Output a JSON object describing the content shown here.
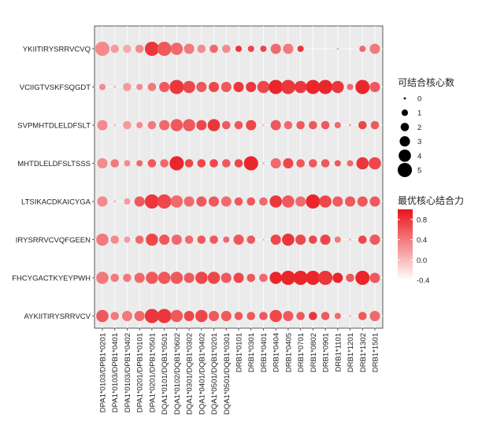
{
  "chart_data": {
    "type": "scatter",
    "peptides": [
      "YKIITIRYSRRVCVQ",
      "VCIIGTVSKFSQGDT",
      "SVPMHTDLELDFSLT",
      "MHTDLELDFSLTSSS",
      "LTSIKACDKAICYGA",
      "IRYSRRVCVQFGEEN",
      "FHCYGACTKYEYPWH",
      "AYKIITIRYSRRVCV"
    ],
    "alleles": [
      "DPA1*0103/DPB1*0201",
      "DPA1*0103/DPB1*0401",
      "DPA1*0103/DPB1*0402",
      "DPA1*0201/DPB1*0101",
      "DPA1*0201/DPB1*0501",
      "DQA1*0101/DQB1*0501",
      "DQA1*0102/DQB1*0602",
      "DQA1*0301/DQB1*0302",
      "DQA1*0401/DQB1*0402",
      "DQA1*0501/DQB1*0201",
      "DQA1*0501/DQB1*0301",
      "DRB1*0101",
      "DRB1*0301",
      "DRB1*0401",
      "DRB1*0404",
      "DRB1*0405",
      "DRB1*0701",
      "DRB1*0802",
      "DRB1*0901",
      "DRB1*1101",
      "DRB1*1201",
      "DRB1*1302",
      "DRB1*1501"
    ],
    "count": [
      [
        5,
        2,
        2,
        2,
        5,
        5,
        4,
        3,
        2,
        2,
        2,
        1,
        1,
        1,
        3,
        3,
        1,
        0,
        0,
        0,
        0,
        1,
        3
      ],
      [
        1,
        0,
        2,
        1,
        2,
        3,
        5,
        4,
        3,
        3,
        3,
        3,
        3,
        4,
        5,
        5,
        4,
        5,
        5,
        4,
        1,
        5,
        3
      ],
      [
        3,
        0,
        2,
        1,
        2,
        3,
        4,
        4,
        3,
        4,
        2,
        2,
        3,
        0,
        3,
        2,
        2,
        2,
        2,
        1,
        0,
        2,
        2
      ],
      [
        3,
        2,
        1,
        1,
        2,
        2,
        5,
        2,
        2,
        2,
        2,
        2,
        5,
        0,
        3,
        3,
        2,
        2,
        2,
        1,
        1,
        4,
        4
      ],
      [
        3,
        0,
        1,
        3,
        5,
        5,
        4,
        3,
        3,
        3,
        3,
        2,
        2,
        2,
        4,
        4,
        3,
        5,
        4,
        3,
        3,
        3,
        3
      ],
      [
        4,
        2,
        1,
        2,
        4,
        3,
        3,
        2,
        2,
        2,
        1,
        3,
        2,
        0,
        3,
        4,
        3,
        2,
        3,
        1,
        0,
        2,
        3
      ],
      [
        4,
        2,
        2,
        3,
        4,
        4,
        4,
        3,
        4,
        4,
        3,
        3,
        2,
        2,
        4,
        5,
        5,
        5,
        5,
        3,
        2,
        5,
        3
      ],
      [
        4,
        2,
        3,
        3,
        5,
        5,
        4,
        3,
        4,
        3,
        3,
        2,
        2,
        2,
        4,
        3,
        2,
        2,
        2,
        1,
        0,
        2,
        3
      ]
    ],
    "affinity": [
      [
        0.3,
        0.2,
        0.1,
        0.3,
        0.8,
        0.6,
        0.5,
        0.4,
        0.3,
        0.5,
        0.3,
        0.8,
        0.7,
        0.7,
        0.5,
        0.4,
        0.8,
        -0.4,
        -0.4,
        0.1,
        -0.4,
        0.5,
        0.4
      ],
      [
        0.3,
        0.1,
        0.2,
        0.3,
        0.4,
        0.6,
        0.8,
        0.7,
        0.6,
        0.7,
        0.6,
        0.8,
        0.8,
        0.7,
        0.9,
        0.8,
        0.8,
        0.9,
        0.9,
        0.8,
        0.5,
        0.9,
        0.6
      ],
      [
        0.3,
        0.1,
        0.2,
        0.3,
        0.4,
        0.5,
        0.6,
        0.6,
        0.7,
        0.8,
        0.6,
        0.6,
        0.7,
        0.0,
        0.6,
        0.5,
        0.6,
        0.6,
        0.6,
        0.5,
        0.2,
        0.7,
        0.6
      ],
      [
        0.3,
        0.4,
        0.3,
        0.5,
        0.6,
        0.5,
        0.9,
        0.7,
        0.7,
        0.7,
        0.6,
        0.7,
        0.9,
        0.1,
        0.5,
        0.7,
        0.6,
        0.6,
        0.6,
        0.6,
        0.5,
        0.8,
        0.7
      ],
      [
        0.3,
        0.1,
        0.2,
        0.6,
        0.8,
        0.7,
        0.5,
        0.5,
        0.6,
        0.6,
        0.5,
        0.6,
        0.6,
        0.5,
        0.8,
        0.6,
        0.5,
        0.9,
        0.7,
        0.6,
        0.6,
        0.6,
        0.6
      ],
      [
        0.4,
        0.3,
        0.2,
        0.5,
        0.7,
        0.6,
        0.5,
        0.5,
        0.6,
        0.6,
        0.5,
        0.6,
        0.6,
        0.0,
        0.7,
        0.8,
        0.7,
        0.7,
        0.7,
        0.4,
        0.1,
        0.7,
        0.6
      ],
      [
        0.4,
        0.4,
        0.4,
        0.5,
        0.6,
        0.6,
        0.6,
        0.6,
        0.7,
        0.7,
        0.6,
        0.7,
        0.6,
        0.5,
        0.9,
        0.9,
        0.9,
        0.9,
        0.8,
        0.9,
        0.6,
        0.9,
        0.6
      ],
      [
        0.6,
        0.4,
        0.4,
        0.5,
        0.8,
        0.8,
        0.6,
        0.7,
        0.7,
        0.6,
        0.6,
        0.6,
        0.6,
        0.6,
        0.7,
        0.6,
        0.6,
        0.8,
        0.6,
        0.5,
        0.1,
        0.6,
        0.5
      ]
    ],
    "size_legend": {
      "title": "可结合核心数",
      "levels": [
        0,
        1,
        2,
        3,
        4,
        5
      ],
      "labels": [
        "0",
        "1",
        "2",
        "3",
        "4",
        "5"
      ]
    },
    "color_legend": {
      "title": "最优核心结合力",
      "range": [
        -0.4,
        1.0
      ],
      "ticks": [
        0.8,
        0.4,
        0.0,
        -0.4
      ],
      "tick_labels": [
        "0.8",
        "0.4",
        "0.0",
        "-0.4"
      ],
      "low_color": "#ffffff",
      "high_color": "#e8151b"
    },
    "panel_background": "#ebebeb",
    "grid": true,
    "xlabel": "",
    "ylabel": ""
  }
}
